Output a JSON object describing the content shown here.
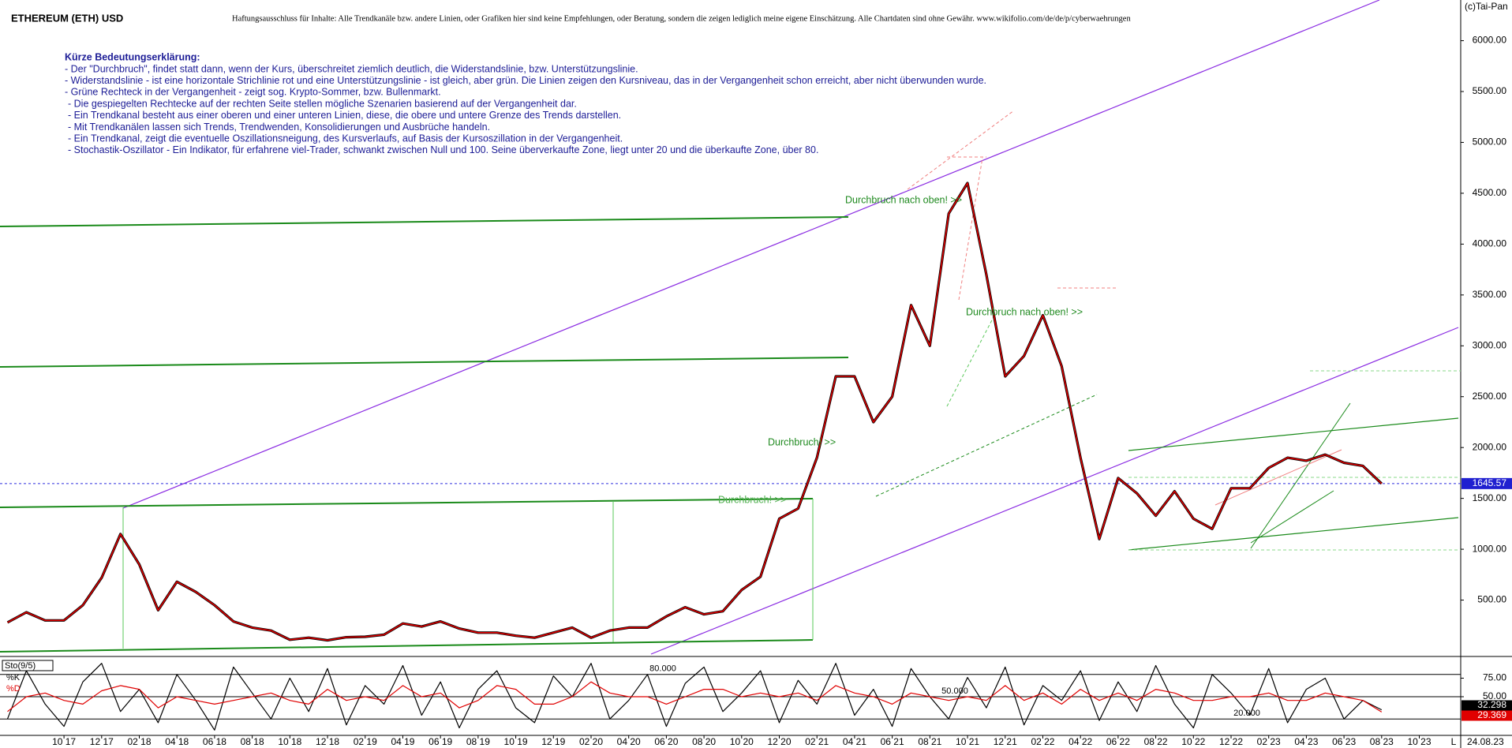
{
  "header": {
    "title": "ETHEREUM (ETH) USD",
    "disclaimer": "Haftungsausschluss für Inhalte: Alle Trendkanäle bzw. andere Linien, oder Grafiken hier sind keine Empfehlungen, oder Beratung, sondern die zeigen lediglich meine eigene Einschätzung. Alle Chartdaten sind ohne Gewähr.  www.wikifolio.com/de/de/p/cyberwaehrungen",
    "copyright": "(c)Tai-Pan",
    "date": "24.08.23",
    "corner": "L"
  },
  "notes": {
    "title": "Kürze Bedeutungserklärung:",
    "lines": [
      "- Der \"Durchbruch\", findet statt dann, wenn der Kurs, überschreitet ziemlich deutlich, die Widerstandslinie, bzw. Unterstützungslinie.",
      "- Widerstandslinie - ist eine horizontale Strichlinie rot und eine Unterstützungslinie - ist gleich, aber grün. Die Linien zeigen den Kursniveau, das in der Vergangenheit schon erreicht, aber nicht überwunden wurde.",
      "- Grüne Rechteck in der Vergangenheit - zeigt sog. Krypto-Sommer, bzw. Bullenmarkt.",
      "- Die gespiegelten Rechtecke auf der rechten Seite stellen mögliche Szenarien basierend auf der Vergangenheit dar.",
      "- Ein Trendkanal besteht aus einer oberen und einer unteren Linien, diese, die obere und untere Grenze des Trends darstellen.",
      "- Mit Trendkanälen lassen sich Trends, Trendwenden, Konsolidierungen und Ausbrüche handeln.",
      "- Ein Trendkanal, zeigt die eventuelle Oszillationsneigung, des Kursverlaufs, auf Basis der Kursoszillation in der Vergangenheit.",
      "- Stochastik-Oszillator - Ein Indikator, für erfahrene viel-Trader, schwankt zwischen Null und 100. Seine überverkaufte Zone, liegt unter 20 und die überkaufte Zone, über 80."
    ]
  },
  "chart_data": [
    {
      "type": "line",
      "color": "#e00000",
      "x": [
        -3,
        -2,
        -1,
        0,
        1,
        2,
        3,
        4,
        5,
        6,
        7,
        8,
        9,
        10,
        11,
        12,
        13,
        14,
        15,
        16,
        17,
        18,
        19,
        20,
        21,
        22,
        23,
        24,
        25,
        26,
        27,
        28,
        29,
        30,
        31,
        32,
        33,
        34,
        35,
        36,
        37,
        38,
        39,
        40,
        41,
        42,
        43,
        44,
        45,
        46,
        47,
        48,
        49,
        50,
        51,
        52,
        53,
        54,
        55,
        56,
        57,
        58,
        59,
        60,
        61,
        62,
        63,
        64,
        65,
        66,
        67,
        68,
        69,
        70
      ],
      "values": [
        280,
        380,
        300,
        300,
        450,
        720,
        1150,
        850,
        400,
        680,
        580,
        450,
        290,
        230,
        200,
        110,
        130,
        105,
        135,
        140,
        160,
        270,
        240,
        290,
        220,
        180,
        180,
        150,
        130,
        180,
        230,
        130,
        200,
        230,
        230,
        340,
        430,
        360,
        390,
        600,
        730,
        1300,
        1400,
        1900,
        2700,
        2700,
        2250,
        2500,
        3400,
        3000,
        4300,
        4600,
        3700,
        2700,
        2900,
        3300,
        2800,
        1900,
        1100,
        1700,
        1550,
        1330,
        1570,
        1300,
        1200,
        1600,
        1600,
        1800,
        1900,
        1870,
        1930,
        1850,
        1820,
        1645.57
      ],
      "xlim": [
        -3.4,
        74.2
      ],
      "xticks": [
        {
          "value": 0,
          "label": "10 17"
        },
        {
          "value": 2,
          "label": "12 17"
        },
        {
          "value": 4,
          "label": "02 18"
        },
        {
          "value": 6,
          "label": "04 18"
        },
        {
          "value": 8,
          "label": "06 18"
        },
        {
          "value": 10,
          "label": "08 18"
        },
        {
          "value": 12,
          "label": "10 18"
        },
        {
          "value": 14,
          "label": "12 18"
        },
        {
          "value": 16,
          "label": "02 19"
        },
        {
          "value": 18,
          "label": "04 19"
        },
        {
          "value": 20,
          "label": "06 19"
        },
        {
          "value": 22,
          "label": "08 19"
        },
        {
          "value": 24,
          "label": "10 19"
        },
        {
          "value": 26,
          "label": "12 19"
        },
        {
          "value": 28,
          "label": "02 20"
        },
        {
          "value": 30,
          "label": "04 20"
        },
        {
          "value": 32,
          "label": "06 20"
        },
        {
          "value": 34,
          "label": "08 20"
        },
        {
          "value": 36,
          "label": "10 20"
        },
        {
          "value": 38,
          "label": "12 20"
        },
        {
          "value": 40,
          "label": "02 21"
        },
        {
          "value": 42,
          "label": "04 21"
        },
        {
          "value": 44,
          "label": "06 21"
        },
        {
          "value": 46,
          "label": "08 21"
        },
        {
          "value": 48,
          "label": "10 21"
        },
        {
          "value": 50,
          "label": "12 21"
        },
        {
          "value": 52,
          "label": "02 22"
        },
        {
          "value": 54,
          "label": "04 22"
        },
        {
          "value": 56,
          "label": "06 22"
        },
        {
          "value": 58,
          "label": "08 22"
        },
        {
          "value": 60,
          "label": "10 22"
        },
        {
          "value": 62,
          "label": "12 22"
        },
        {
          "value": 64,
          "label": "02 23"
        },
        {
          "value": 66,
          "label": "04 23"
        },
        {
          "value": 68,
          "label": "06 23"
        },
        {
          "value": 70,
          "label": "08 23"
        },
        {
          "value": 72,
          "label": "10 23"
        }
      ],
      "ylim": [
        0,
        6400
      ],
      "yticks": [
        {
          "value": 500,
          "label": "500.00"
        },
        {
          "value": 1000,
          "label": "1000.00"
        },
        {
          "value": 1500,
          "label": "1500.00"
        },
        {
          "value": 2000,
          "label": "2000.00"
        },
        {
          "value": 2500,
          "label": "2500.00"
        },
        {
          "value": 3000,
          "label": "3000.00"
        },
        {
          "value": 3500,
          "label": "3500.00"
        },
        {
          "value": 4000,
          "label": "4000.00"
        },
        {
          "value": 4500,
          "label": "4500.00"
        },
        {
          "value": 5000,
          "label": "5000.00"
        },
        {
          "value": 5500,
          "label": "5500.00"
        },
        {
          "value": 6000,
          "label": "6000.00"
        }
      ],
      "annotations": [
        "Durchbruch nach oben! >>",
        "Durchbruch nach oben! >>",
        "Durchbruch! >>",
        "Durchbruch! >>"
      ]
    },
    {
      "type": "line",
      "title": "Sto(9/5)",
      "x": [
        -3,
        -2,
        -1,
        0,
        1,
        2,
        3,
        4,
        5,
        6,
        7,
        8,
        9,
        10,
        11,
        12,
        13,
        14,
        15,
        16,
        17,
        18,
        19,
        20,
        21,
        22,
        23,
        24,
        25,
        26,
        27,
        28,
        29,
        30,
        31,
        32,
        33,
        34,
        35,
        36,
        37,
        38,
        39,
        40,
        41,
        42,
        43,
        44,
        45,
        46,
        47,
        48,
        49,
        50,
        51,
        52,
        53,
        54,
        55,
        56,
        57,
        58,
        59,
        60,
        61,
        62,
        63,
        64,
        65,
        66,
        67,
        68,
        69,
        70
      ],
      "series": [
        {
          "name": "%K",
          "color": "#000000",
          "values": [
            20,
            85,
            40,
            10,
            70,
            95,
            30,
            60,
            15,
            80,
            45,
            5,
            90,
            55,
            20,
            75,
            30,
            88,
            12,
            65,
            40,
            92,
            25,
            70,
            8,
            60,
            85,
            35,
            15,
            78,
            50,
            95,
            20,
            45,
            80,
            10,
            68,
            90,
            30,
            55,
            85,
            15,
            72,
            40,
            95,
            25,
            60,
            10,
            88,
            50,
            20,
            76,
            35,
            90,
            12,
            65,
            45,
            85,
            18,
            70,
            30,
            92,
            40,
            8,
            80,
            55,
            25,
            88,
            15,
            60,
            75,
            20,
            45,
            32.298
          ]
        },
        {
          "name": "%D",
          "color": "#e00000",
          "values": [
            30,
            50,
            55,
            45,
            40,
            58,
            65,
            60,
            35,
            50,
            45,
            40,
            45,
            50,
            55,
            45,
            40,
            60,
            45,
            50,
            45,
            65,
            50,
            55,
            35,
            45,
            65,
            60,
            40,
            40,
            50,
            70,
            55,
            50,
            50,
            40,
            50,
            60,
            60,
            50,
            55,
            50,
            55,
            45,
            65,
            55,
            50,
            40,
            55,
            50,
            45,
            50,
            45,
            65,
            45,
            55,
            40,
            60,
            45,
            55,
            45,
            60,
            55,
            45,
            45,
            50,
            50,
            55,
            45,
            45,
            55,
            50,
            45,
            29.369
          ]
        }
      ],
      "xlim": [
        -3.4,
        74.2
      ],
      "ylim": [
        0,
        100
      ],
      "yticks": [
        {
          "value": 50,
          "label": "50.00"
        },
        {
          "value": 75,
          "label": "75.00"
        }
      ],
      "levels": [
        {
          "value": 80,
          "label": "80.000"
        },
        {
          "value": 50,
          "label": "50.000"
        },
        {
          "value": 20,
          "label": "20.000"
        }
      ]
    }
  ]
}
